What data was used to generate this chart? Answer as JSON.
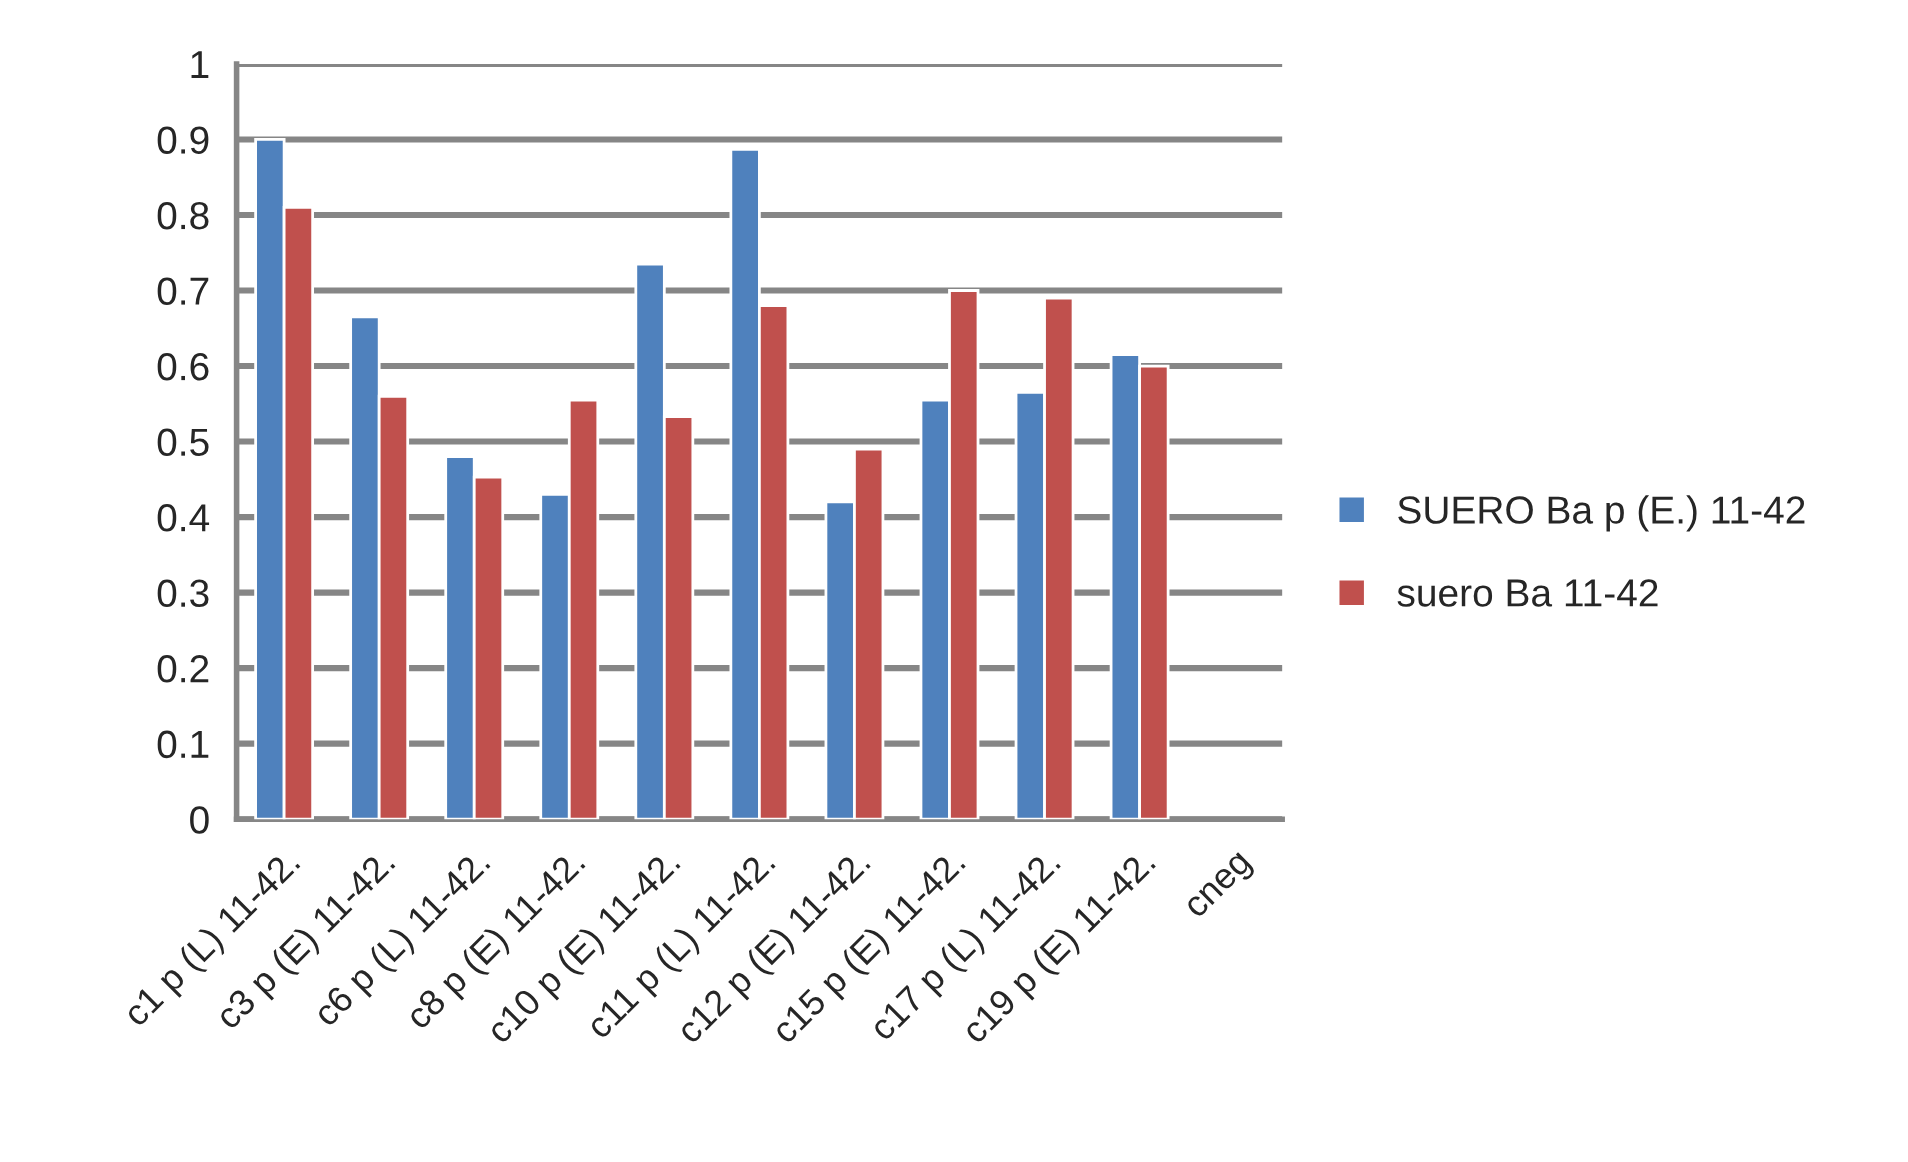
{
  "chart_data": {
    "type": "bar",
    "categories": [
      "c1 p (L) 11-42.",
      "c3 p (E) 11-42.",
      "c6 p (L) 11-42.",
      "c8 p (E) 11-42.",
      "c10 p (E) 11-42.",
      "c11 p (L) 11-42.",
      "c12 p (E) 11-42.",
      "c15 p (E) 11-42.",
      "c17 p (L) 11-42.",
      "c19 p (E) 11-42.",
      "cneg"
    ],
    "series": [
      {
        "name": "SUERO Ba p (E.) 11-42",
        "color": "#4f81bd",
        "values": [
          0.9,
          0.665,
          0.48,
          0.43,
          0.735,
          0.887,
          0.42,
          0.555,
          0.565,
          0.615,
          null
        ]
      },
      {
        "name": "suero Ba 11-42",
        "color": "#c0504d",
        "values": [
          0.81,
          0.56,
          0.453,
          0.555,
          0.533,
          0.68,
          0.49,
          0.7,
          0.69,
          0.6,
          null
        ]
      }
    ],
    "ylim": [
      0,
      1
    ],
    "yticks": [
      0,
      0.1,
      0.2,
      0.3,
      0.4,
      0.5,
      0.6,
      0.7,
      0.8,
      0.9,
      1
    ],
    "grid": "y",
    "legend": "right"
  }
}
